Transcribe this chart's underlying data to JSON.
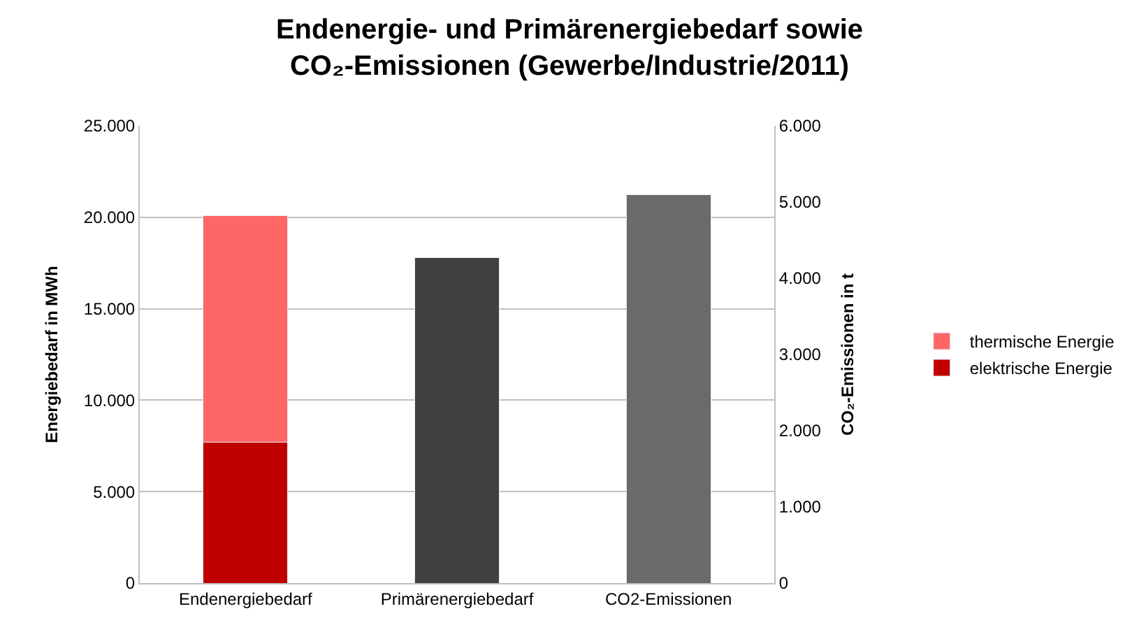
{
  "chart_data": {
    "type": "bar",
    "title": "Endenergie- und Primärenergiebedarf sowie\nCO₂-Emissionen (Gewerbe/Industrie/2011)",
    "ylabel": "Energiebedarf in MWh",
    "y2label": "CO₂-Emissionen in t",
    "categories": [
      "Endenergiebedarf",
      "Primärenergiebedarf",
      "CO2-Emissionen"
    ],
    "stacked": true,
    "series": [
      {
        "name": "elektrische Energie",
        "color": "#c00000",
        "values": [
          7700,
          null,
          null
        ]
      },
      {
        "name": "thermische Energie",
        "color": "#ff6666",
        "values": [
          12400,
          null,
          null
        ]
      },
      {
        "color": "#404040",
        "values": [
          null,
          17800,
          null
        ]
      },
      {
        "color": "#6a6a6a",
        "values": [
          null,
          null,
          5100
        ],
        "axis": "y2"
      }
    ],
    "ylim": [
      0,
      25000
    ],
    "yticks": [
      {
        "value": 0,
        "label": "0"
      },
      {
        "value": 5000,
        "label": "5.000"
      },
      {
        "value": 10000,
        "label": "10.000"
      },
      {
        "value": 15000,
        "label": "15.000"
      },
      {
        "value": 20000,
        "label": "20.000"
      },
      {
        "value": 25000,
        "label": "25.000"
      }
    ],
    "y2lim": [
      0,
      6000
    ],
    "y2ticks": [
      {
        "value": 0,
        "label": "0"
      },
      {
        "value": 1000,
        "label": "1.000"
      },
      {
        "value": 2000,
        "label": "2.000"
      },
      {
        "value": 3000,
        "label": "3.000"
      },
      {
        "value": 4000,
        "label": "4.000"
      },
      {
        "value": 5000,
        "label": "5.000"
      },
      {
        "value": 6000,
        "label": "6.000"
      }
    ],
    "grid": "y",
    "legend": "right"
  }
}
